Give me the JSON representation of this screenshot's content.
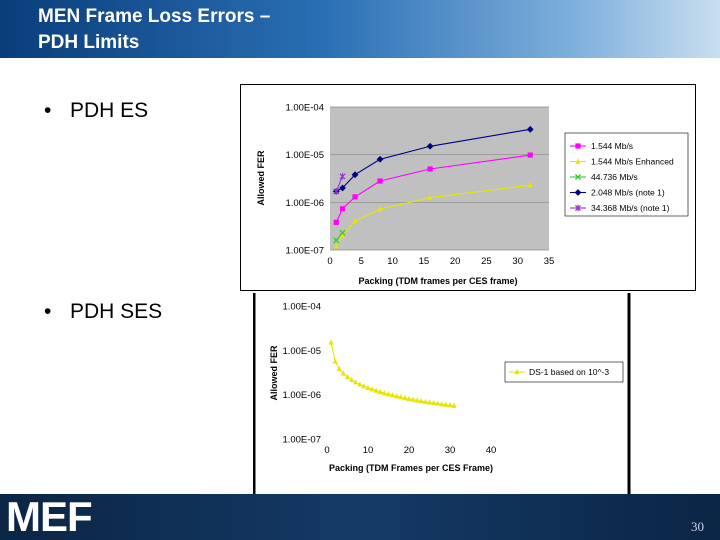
{
  "slide": {
    "title_line1": "MEN Frame Loss Errors –",
    "title_line2": "PDH Limits",
    "bullets": [
      "PDH ES",
      "PDH SES"
    ],
    "bullet_glyph": "•",
    "logo": "MEF",
    "page_number": "30"
  },
  "chart_data": [
    {
      "type": "line",
      "y_scale": "log",
      "ylabel": "Allowed FER",
      "xlabel": "Packing (TDM frames per CES frame)",
      "xlim": [
        0,
        35
      ],
      "ylim": [
        1e-07,
        0.0001
      ],
      "x_ticks": [
        "0",
        "5",
        "10",
        "15",
        "20",
        "25",
        "30",
        "35"
      ],
      "x_tick_values": [
        0,
        5,
        10,
        15,
        20,
        25,
        30,
        35
      ],
      "y_ticks": [
        "1.00E-04",
        "1.00E-05",
        "1.00E-06",
        "1.00E-07"
      ],
      "y_tick_values": [
        0.0001,
        1e-05,
        1e-06,
        1e-07
      ],
      "plot_background": "#c0c0c0",
      "grid": true,
      "legend_position": "right",
      "series": [
        {
          "name": "1.544 Mb/s",
          "color": "#ff00ff",
          "marker": "square",
          "x": [
            1,
            2,
            4,
            8,
            16,
            32
          ],
          "y": [
            3.8e-07,
            7.3e-07,
            1.3e-06,
            2.8e-06,
            5e-06,
            9.8e-06
          ]
        },
        {
          "name": "1.544 Mb/s Enhanced",
          "color": "#e6e600",
          "marker": "triangle",
          "x": [
            1,
            2,
            4,
            8,
            16,
            32
          ],
          "y": [
            1.2e-07,
            2e-07,
            4e-07,
            7.2e-07,
            1.25e-06,
            2.3e-06
          ]
        },
        {
          "name": "44.736 Mb/s",
          "color": "#33cc33",
          "marker": "x",
          "x": [
            1,
            2
          ],
          "y": [
            1.6e-07,
            2.3e-07
          ]
        },
        {
          "name": "2.048 Mb/s (note 1)",
          "color": "#000080",
          "marker": "diamond",
          "x": [
            1,
            2,
            4,
            8,
            16,
            32
          ],
          "y": [
            1.7e-06,
            2e-06,
            3.8e-06,
            8e-06,
            1.5e-05,
            3.4e-05
          ]
        },
        {
          "name": "34.368 Mb/s (note 1)",
          "color": "#9933cc",
          "marker": "star",
          "x": [
            1,
            2
          ],
          "y": [
            1.7e-06,
            3.5e-06
          ]
        }
      ]
    },
    {
      "type": "line",
      "y_scale": "log",
      "ylabel": "Allowed FER",
      "xlabel": "Packing (TDM Frames per CES Frame)",
      "xlim": [
        0,
        40
      ],
      "ylim": [
        1e-07,
        0.0001
      ],
      "x_ticks": [
        "0",
        "10",
        "20",
        "30",
        "40"
      ],
      "x_tick_values": [
        0,
        10,
        20,
        30,
        40
      ],
      "y_ticks": [
        "1.00E-04",
        "1.00E-05",
        "1.00E-06",
        "1.00E-07"
      ],
      "y_tick_values": [
        0.0001,
        1e-05,
        1e-06,
        1e-07
      ],
      "plot_background": "#ffffff",
      "grid": false,
      "legend_position": "right",
      "series": [
        {
          "name": "DS-1 based on 10^-3",
          "color": "#e6e600",
          "marker": "triangle",
          "x": [
            1,
            2,
            3,
            4,
            5,
            6,
            7,
            8,
            9,
            10,
            11,
            12,
            13,
            14,
            15,
            16,
            17,
            18,
            19,
            20,
            21,
            22,
            23,
            24,
            25,
            26,
            27,
            28,
            29,
            30,
            31
          ],
          "y": [
            1.5e-05,
            5.6e-06,
            3.8e-06,
            3e-06,
            2.5e-06,
            2.15e-06,
            1.9e-06,
            1.7e-06,
            1.55e-06,
            1.42e-06,
            1.32e-06,
            1.23e-06,
            1.15e-06,
            1.08e-06,
            1.02e-06,
            9.7e-07,
            9.2e-07,
            8.8e-07,
            8.4e-07,
            8e-07,
            7.7e-07,
            7.4e-07,
            7.1e-07,
            6.9e-07,
            6.7e-07,
            6.5e-07,
            6.3e-07,
            6.1e-07,
            5.9e-07,
            5.75e-07,
            5.6e-07
          ]
        }
      ]
    }
  ]
}
